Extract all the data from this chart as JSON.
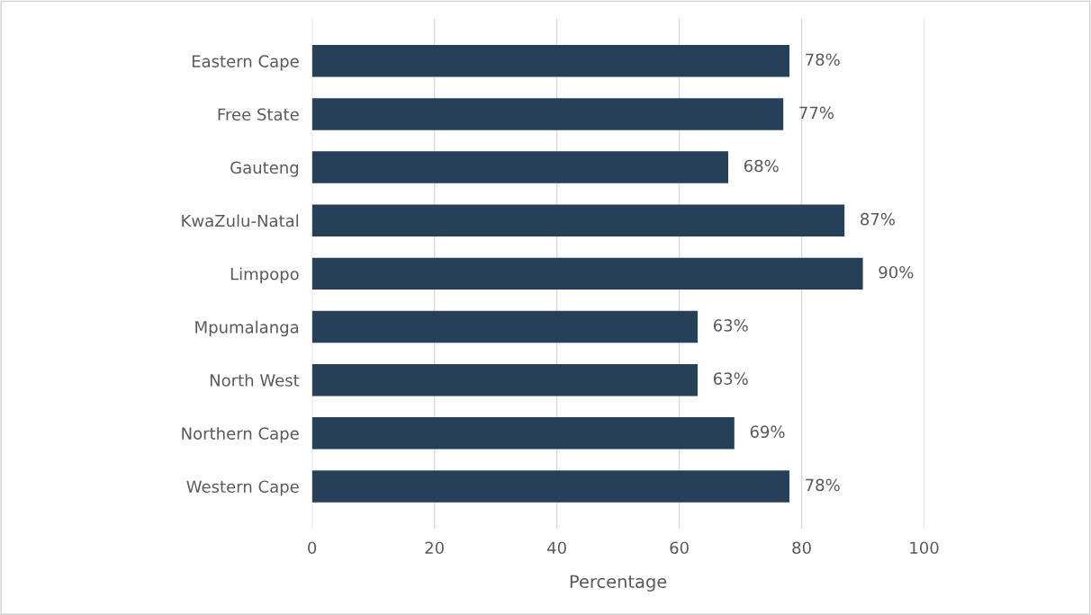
{
  "chart_data": {
    "type": "bar",
    "orientation": "horizontal",
    "xlabel": "Percentage",
    "categories": [
      "Eastern Cape",
      "Free State",
      "Gauteng",
      "KwaZulu-Natal",
      "Limpopo",
      "Mpumalanga",
      "North West",
      "Northern Cape",
      "Western Cape"
    ],
    "values": [
      78,
      77,
      68,
      87,
      90,
      63,
      63,
      69,
      78
    ],
    "value_labels": [
      "78%",
      "77%",
      "68%",
      "87%",
      "90%",
      "63%",
      "63%",
      "69%",
      "78%"
    ],
    "color": "#264059",
    "xlim": [
      0,
      100
    ],
    "xticks": [
      0,
      20,
      40,
      60,
      80,
      100
    ],
    "grid": "x",
    "legend": false
  }
}
